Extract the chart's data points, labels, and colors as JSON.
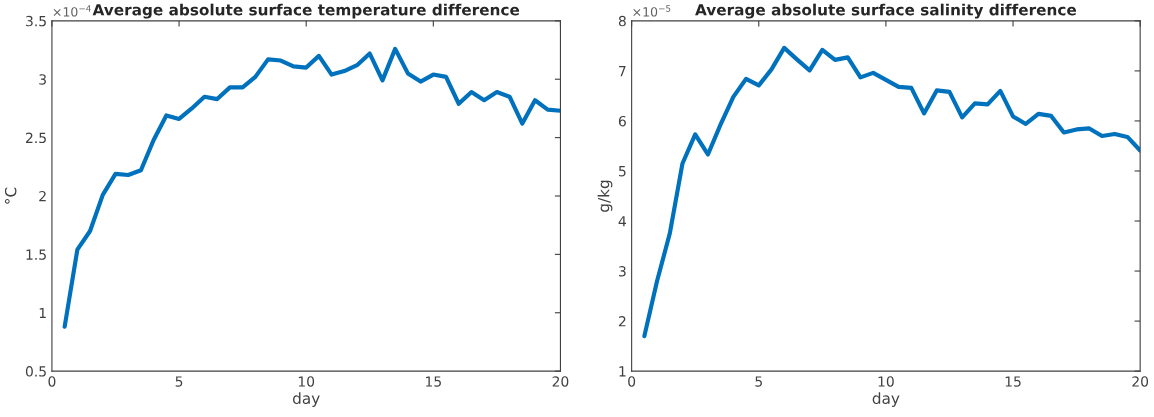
{
  "chart_data": [
    {
      "type": "line",
      "title": "Average absolute surface temperature difference",
      "xlabel": "day",
      "ylabel": "°C",
      "annotations": [
        "×10$^{−4}$"
      ],
      "x": [
        0.5,
        1,
        1.5,
        2,
        2.5,
        3,
        3.5,
        4,
        4.5,
        5,
        5.5,
        6,
        6.5,
        7,
        7.5,
        8,
        8.5,
        9,
        9.5,
        10,
        10.5,
        11,
        11.5,
        12,
        12.5,
        13,
        13.5,
        14,
        14.5,
        15,
        15.5,
        16,
        16.5,
        17,
        17.5,
        18,
        18.5,
        19,
        19.5,
        20
      ],
      "series": [
        {
          "color": "#0072bd",
          "values": [
            0.88,
            1.54,
            1.7,
            2.01,
            2.19,
            2.18,
            2.22,
            2.48,
            2.69,
            2.66,
            2.75,
            2.85,
            2.83,
            2.93,
            2.93,
            3.02,
            3.17,
            3.16,
            3.11,
            3.1,
            3.2,
            3.04,
            3.07,
            3.12,
            3.22,
            2.99,
            3.26,
            3.05,
            2.98,
            3.04,
            3.02,
            2.79,
            2.89,
            2.82,
            2.89,
            2.85,
            2.62,
            2.82,
            2.74,
            2.73
          ]
        }
      ],
      "xlim": [
        0,
        20
      ],
      "xticks": [
        0,
        5,
        10,
        15,
        20
      ],
      "ylim": [
        0.5,
        3.5
      ],
      "yticks": [
        0.5,
        1,
        1.5,
        2,
        2.5,
        3,
        3.5
      ],
      "grid": false,
      "legend": false,
      "line_style": "solid",
      "marker": "none"
    },
    {
      "type": "line",
      "title": "Average absolute surface salinity difference",
      "xlabel": "day",
      "ylabel": "g/kg",
      "annotations": [
        "×10$^{−5}$"
      ],
      "x": [
        0.5,
        1,
        1.5,
        2,
        2.5,
        3,
        3.5,
        4,
        4.5,
        5,
        5.5,
        6,
        6.5,
        7,
        7.5,
        8,
        8.5,
        9,
        9.5,
        10,
        10.5,
        11,
        11.5,
        12,
        12.5,
        13,
        13.5,
        14,
        14.5,
        15,
        15.5,
        16,
        16.5,
        17,
        17.5,
        18,
        18.5,
        19,
        19.5,
        20
      ],
      "series": [
        {
          "color": "#0072bd",
          "values": [
            1.7,
            2.8,
            3.75,
            5.15,
            5.73,
            5.33,
            5.93,
            6.48,
            6.84,
            6.71,
            7.03,
            7.46,
            7.23,
            7.01,
            7.42,
            7.22,
            7.27,
            6.87,
            6.96,
            6.82,
            6.68,
            6.66,
            6.15,
            6.61,
            6.58,
            6.07,
            6.35,
            6.33,
            6.6,
            6.09,
            5.94,
            6.14,
            6.1,
            5.77,
            5.83,
            5.85,
            5.7,
            5.74,
            5.68,
            5.41
          ]
        }
      ],
      "xlim": [
        0,
        20
      ],
      "xticks": [
        0,
        5,
        10,
        15,
        20
      ],
      "ylim": [
        1,
        8
      ],
      "yticks": [
        1,
        2,
        3,
        4,
        5,
        6,
        7,
        8
      ],
      "grid": false,
      "legend": false,
      "line_style": "solid",
      "marker": "none"
    }
  ]
}
